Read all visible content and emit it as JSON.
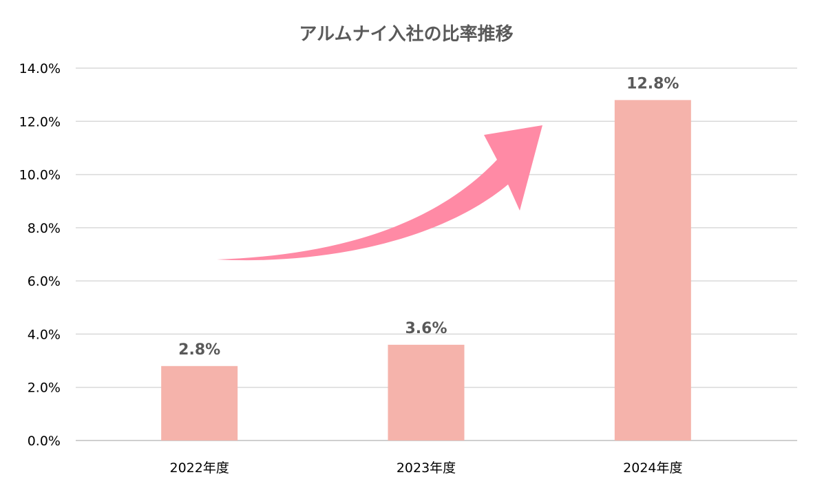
{
  "chart_data": {
    "type": "bar",
    "title": "アルムナイ入社の比率推移",
    "categories": [
      "2022年度",
      "2023年度",
      "2024年度"
    ],
    "values": [
      2.8,
      3.6,
      12.8
    ],
    "data_labels": [
      "2.8%",
      "3.6%",
      "12.8%"
    ],
    "y_ticks": [
      "0.0%",
      "2.0%",
      "4.0%",
      "6.0%",
      "8.0%",
      "10.0%",
      "12.0%",
      "14.0%"
    ],
    "ylim": [
      0,
      14
    ],
    "ystep": 2,
    "grid": true,
    "legend": "none",
    "bar_color": "#f5b3ab",
    "arrow_color": "#ff8aa5",
    "annotation": "upward-trend-arrow-icon"
  }
}
